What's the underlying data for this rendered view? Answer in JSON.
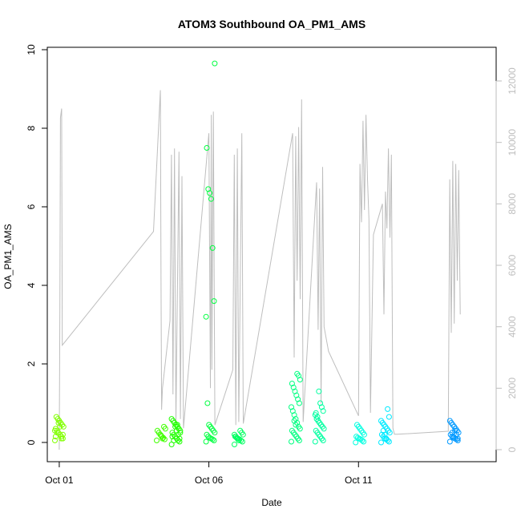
{
  "chart_data": {
    "type": "scatter",
    "title": "ATOM3 Southbound OA_PM1_AMS",
    "xlabel": "Date",
    "ylabel": "OA_PM1_AMS",
    "x_ticks": [
      "Oct 01",
      "Oct 06",
      "Oct 11"
    ],
    "x_tick_day": [
      1,
      6,
      11
    ],
    "xlim_day": [
      0.6,
      15.6
    ],
    "ylim": [
      0,
      10
    ],
    "y_ticks": [
      0,
      2,
      4,
      6,
      8,
      10
    ],
    "y2_ticks": [
      0,
      2000,
      4000,
      6000,
      8000,
      10000,
      12000
    ],
    "y2lim": [
      0,
      12000
    ],
    "grid": false,
    "series": [
      {
        "type": "line",
        "axis": "secondary",
        "color": "#bebebe",
        "points": [
          [
            1.0,
            0
          ],
          [
            1.02,
            4500
          ],
          [
            1.04,
            10800
          ],
          [
            1.08,
            11100
          ],
          [
            1.1,
            3400
          ],
          [
            4.15,
            7100
          ],
          [
            4.38,
            11700
          ],
          [
            4.4,
            5400
          ],
          [
            4.42,
            1300
          ],
          [
            4.45,
            2000
          ],
          [
            4.7,
            4200
          ],
          [
            4.75,
            9600
          ],
          [
            4.8,
            1800
          ],
          [
            4.85,
            9800
          ],
          [
            4.9,
            900
          ],
          [
            5.0,
            9700
          ],
          [
            5.05,
            1000
          ],
          [
            5.1,
            8900
          ],
          [
            5.15,
            700
          ],
          [
            6.0,
            10300
          ],
          [
            6.05,
            2000
          ],
          [
            6.08,
            10900
          ],
          [
            6.1,
            2600
          ],
          [
            6.15,
            11000
          ],
          [
            6.2,
            800
          ],
          [
            6.8,
            2600
          ],
          [
            6.85,
            9600
          ],
          [
            6.9,
            800
          ],
          [
            6.95,
            9800
          ],
          [
            7.0,
            900
          ],
          [
            7.1,
            10300
          ],
          [
            7.15,
            850
          ],
          [
            8.8,
            10300
          ],
          [
            8.85,
            3000
          ],
          [
            8.9,
            10200
          ],
          [
            8.95,
            5500
          ],
          [
            9.0,
            10500
          ],
          [
            9.05,
            4900
          ],
          [
            9.1,
            11400
          ],
          [
            9.15,
            900
          ],
          [
            9.6,
            8700
          ],
          [
            9.65,
            3900
          ],
          [
            9.7,
            8500
          ],
          [
            9.75,
            1500
          ],
          [
            9.8,
            9200
          ],
          [
            9.85,
            4000
          ],
          [
            10.0,
            3200
          ],
          [
            11.0,
            1100
          ],
          [
            11.05,
            9300
          ],
          [
            11.1,
            7400
          ],
          [
            11.15,
            10700
          ],
          [
            11.2,
            7800
          ],
          [
            11.25,
            10900
          ],
          [
            11.3,
            8800
          ],
          [
            11.35,
            7500
          ],
          [
            11.4,
            1200
          ],
          [
            11.5,
            7000
          ],
          [
            11.8,
            8000
          ],
          [
            11.85,
            4400
          ],
          [
            11.9,
            8400
          ],
          [
            11.95,
            7200
          ],
          [
            12.0,
            9800
          ],
          [
            12.05,
            6900
          ],
          [
            12.1,
            9600
          ],
          [
            12.15,
            700
          ],
          [
            12.2,
            500
          ],
          [
            12.3,
            500
          ],
          [
            14.0,
            600
          ],
          [
            14.05,
            8800
          ],
          [
            14.1,
            3800
          ],
          [
            14.15,
            9400
          ],
          [
            14.2,
            4100
          ],
          [
            14.25,
            9300
          ],
          [
            14.3,
            5500
          ],
          [
            14.35,
            9100
          ],
          [
            14.4,
            4400
          ]
        ]
      },
      {
        "type": "scatter",
        "axis": "primary",
        "colors": [
          "#80ff00",
          "#20ff00",
          "#00ff40",
          "#00ff60",
          "#00ffc0",
          "#00eaff",
          "#0099ff"
        ],
        "clusters": [
          {
            "day": 1.0,
            "color": "#80ff00",
            "ys": [
              0.05,
              0.1,
              0.15,
              0.2,
              0.25,
              0.3,
              0.35,
              0.4,
              0.45,
              0.5,
              0.55,
              0.6,
              0.65,
              0.3,
              0.2,
              0.1,
              0.4,
              0.5,
              0.25,
              0.15
            ]
          },
          {
            "day": 4.4,
            "color": "#40ff00",
            "ys": [
              0.05,
              0.08,
              0.12,
              0.15,
              0.2,
              0.25,
              0.3,
              0.35,
              0.4,
              0.1,
              0.18
            ]
          },
          {
            "day": 4.9,
            "color": "#20ff00",
            "ys": [
              -0.05,
              0.02,
              0.05,
              0.1,
              0.15,
              0.2,
              0.25,
              0.3,
              0.35,
              0.4,
              0.45,
              0.5,
              0.55,
              0.6,
              0.1,
              0.2,
              0.3,
              0.4,
              0.05,
              0.15,
              0.25,
              0.35,
              0.45
            ]
          },
          {
            "day": 6.05,
            "color": "#00ff40",
            "ys": [
              0.02,
              0.05,
              0.08,
              0.1,
              0.12,
              0.15,
              0.2,
              0.25,
              0.3,
              0.35,
              0.4,
              0.45,
              1.0,
              3.2,
              3.6,
              4.95,
              6.2,
              6.35,
              6.45,
              7.5,
              9.65
            ]
          },
          {
            "day": 7.0,
            "color": "#00ff60",
            "ys": [
              -0.05,
              0.02,
              0.05,
              0.08,
              0.1,
              0.12,
              0.15,
              0.2,
              0.25,
              0.3,
              0.05,
              0.1,
              0.15,
              0.2
            ]
          },
          {
            "day": 8.9,
            "color": "#00ff80",
            "ys": [
              0.02,
              0.05,
              0.1,
              0.15,
              0.2,
              0.25,
              0.3,
              0.35,
              0.4,
              0.5,
              0.6,
              0.7,
              0.8,
              0.9,
              1.0,
              1.1,
              1.2,
              1.3,
              1.4,
              1.5,
              1.6,
              1.7,
              1.75,
              0.45,
              0.55
            ]
          },
          {
            "day": 9.7,
            "color": "#00ffa0",
            "ys": [
              0.02,
              0.05,
              0.1,
              0.15,
              0.2,
              0.25,
              0.3,
              0.35,
              0.4,
              0.45,
              0.5,
              0.55,
              0.6,
              0.7,
              0.8,
              0.9,
              1.0,
              1.3,
              0.65,
              0.75
            ]
          },
          {
            "day": 11.05,
            "color": "#00ffe0",
            "ys": [
              0.0,
              0.02,
              0.05,
              0.08,
              0.1,
              0.12,
              0.15,
              0.2,
              0.25,
              0.3,
              0.35,
              0.4,
              0.45
            ]
          },
          {
            "day": 11.9,
            "color": "#00eaff",
            "ys": [
              0.0,
              0.02,
              0.05,
              0.08,
              0.1,
              0.15,
              0.2,
              0.25,
              0.3,
              0.35,
              0.4,
              0.45,
              0.5,
              0.55,
              0.65,
              0.85,
              0.1,
              0.2,
              0.3
            ]
          },
          {
            "day": 14.2,
            "color": "#0099ff",
            "ys": [
              0.02,
              0.05,
              0.08,
              0.1,
              0.12,
              0.15,
              0.2,
              0.25,
              0.3,
              0.35,
              0.4,
              0.45,
              0.5,
              0.55,
              0.1,
              0.2,
              0.3,
              0.15,
              0.25
            ]
          }
        ]
      }
    ]
  }
}
